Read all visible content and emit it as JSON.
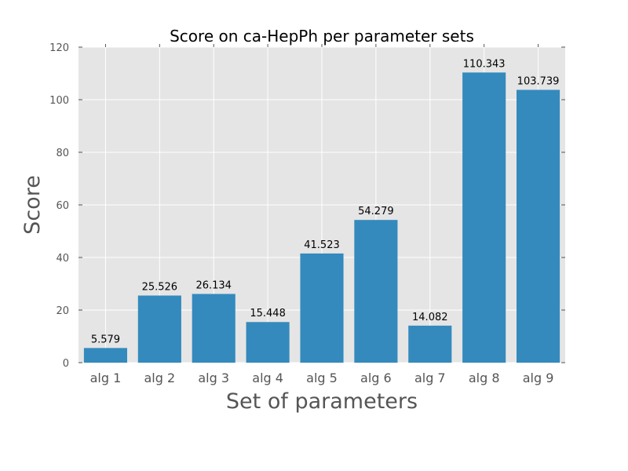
{
  "colors": {
    "plot_background": "#e5e5e5",
    "grid": "#ffffff",
    "bar": "#348abd",
    "tick_text": "#555555"
  },
  "chart_data": {
    "type": "bar",
    "title": "Score on ca-HepPh per parameter sets",
    "xlabel": "Set of parameters",
    "ylabel": "Score",
    "categories": [
      "alg 1",
      "alg 2",
      "alg 3",
      "alg 4",
      "alg 5",
      "alg 6",
      "alg 7",
      "alg 8",
      "alg 9"
    ],
    "values": [
      5.579,
      25.526,
      26.134,
      15.448,
      41.523,
      54.279,
      14.082,
      110.343,
      103.739
    ],
    "data_labels": [
      "5.579",
      "25.526",
      "26.134",
      "15.448",
      "41.523",
      "54.279",
      "14.082",
      "110.343",
      "103.739"
    ],
    "ylim": [
      0,
      120
    ],
    "yticks": [
      0,
      20,
      40,
      60,
      80,
      100,
      120
    ],
    "grid": true,
    "legend": "none"
  }
}
